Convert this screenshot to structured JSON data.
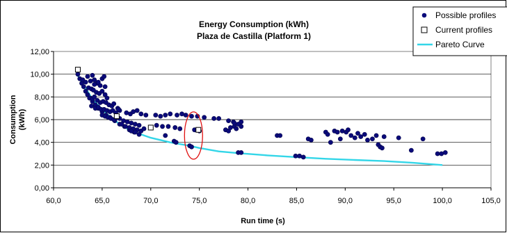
{
  "chart_data": {
    "type": "scatter",
    "title": "Energy Consumption (kWh)",
    "subtitle": "Plaza de Castilla (Platform 1)",
    "xlabel": "Run time (s)",
    "ylabel": "Consumption (kWh)",
    "xlim": [
      60,
      105
    ],
    "ylim": [
      0,
      12
    ],
    "x_ticks": [
      "60,0",
      "65,0",
      "70,0",
      "75,0",
      "80,0",
      "85,0",
      "90,0",
      "95,0",
      "100,0",
      "105,0"
    ],
    "y_ticks": [
      "0,00",
      "2,00",
      "4,00",
      "6,00",
      "8,00",
      "10,00",
      "12,00"
    ],
    "grid": "horizontal",
    "legend_position": "top-right",
    "colors": {
      "possible": "#0a0a7a",
      "current": "#000000",
      "pareto": "#33d6e8",
      "highlight": "#e01010"
    },
    "series": [
      {
        "name": "Possible profiles",
        "marker": "filled-circle",
        "points": [
          [
            62.5,
            10.0
          ],
          [
            62.7,
            9.6
          ],
          [
            62.9,
            9.2
          ],
          [
            63.1,
            8.9
          ],
          [
            63.3,
            8.5
          ],
          [
            63.5,
            8.2
          ],
          [
            63.8,
            7.9
          ],
          [
            64.0,
            7.6
          ],
          [
            64.3,
            7.3
          ],
          [
            64.6,
            7.0
          ],
          [
            65.0,
            6.7
          ],
          [
            65.4,
            6.4
          ],
          [
            65.8,
            6.2
          ],
          [
            66.3,
            5.9
          ],
          [
            66.8,
            5.6
          ],
          [
            67.3,
            5.4
          ],
          [
            67.8,
            5.1
          ],
          [
            68.3,
            4.9
          ],
          [
            68.8,
            4.7
          ],
          [
            63.0,
            9.5
          ],
          [
            63.3,
            9.3
          ],
          [
            63.5,
            9.8
          ],
          [
            63.8,
            9.4
          ],
          [
            64.0,
            9.9
          ],
          [
            64.2,
            9.5
          ],
          [
            64.5,
            9.2
          ],
          [
            64.8,
            9.0
          ],
          [
            65.0,
            9.6
          ],
          [
            65.2,
            9.8
          ],
          [
            63.6,
            8.8
          ],
          [
            63.9,
            8.7
          ],
          [
            64.1,
            8.6
          ],
          [
            64.4,
            8.4
          ],
          [
            64.7,
            8.3
          ],
          [
            65.0,
            8.5
          ],
          [
            65.3,
            8.2
          ],
          [
            63.7,
            7.9
          ],
          [
            64.0,
            7.8
          ],
          [
            64.2,
            8.0
          ],
          [
            64.5,
            7.7
          ],
          [
            64.8,
            7.5
          ],
          [
            65.1,
            7.6
          ],
          [
            65.4,
            7.5
          ],
          [
            65.7,
            7.3
          ],
          [
            66.0,
            7.2
          ],
          [
            66.2,
            7.4
          ],
          [
            63.9,
            7.2
          ],
          [
            64.3,
            7.0
          ],
          [
            64.6,
            7.1
          ],
          [
            64.9,
            6.9
          ],
          [
            65.2,
            6.9
          ],
          [
            65.5,
            6.8
          ],
          [
            65.8,
            6.7
          ],
          [
            66.1,
            6.8
          ],
          [
            66.4,
            6.6
          ],
          [
            66.6,
            7.0
          ],
          [
            66.8,
            6.8
          ],
          [
            65.0,
            6.4
          ],
          [
            65.3,
            6.3
          ],
          [
            65.6,
            6.2
          ],
          [
            65.9,
            6.1
          ],
          [
            66.2,
            6.0
          ],
          [
            66.5,
            6.2
          ],
          [
            66.8,
            6.1
          ],
          [
            67.2,
            5.9
          ],
          [
            67.6,
            5.8
          ],
          [
            68.0,
            5.7
          ],
          [
            68.4,
            5.6
          ],
          [
            68.8,
            5.5
          ],
          [
            67.0,
            5.6
          ],
          [
            67.4,
            5.4
          ],
          [
            67.8,
            5.3
          ],
          [
            68.2,
            5.2
          ],
          [
            68.6,
            5.1
          ],
          [
            69.0,
            5.0
          ],
          [
            69.3,
            5.2
          ],
          [
            68.0,
            5.0
          ],
          [
            68.4,
            4.9
          ],
          [
            64.2,
            9.1
          ],
          [
            64.6,
            9.3
          ],
          [
            65.3,
            8.9
          ],
          [
            65.5,
            7.9
          ],
          [
            66.7,
            6.9
          ],
          [
            67.5,
            6.6
          ],
          [
            67.9,
            6.5
          ],
          [
            68.2,
            6.7
          ],
          [
            68.6,
            6.8
          ],
          [
            69.0,
            6.5
          ],
          [
            69.5,
            6.4
          ],
          [
            70.5,
            6.4
          ],
          [
            71.0,
            6.3
          ],
          [
            71.5,
            6.4
          ],
          [
            72.0,
            6.5
          ],
          [
            72.7,
            6.4
          ],
          [
            73.2,
            6.5
          ],
          [
            73.6,
            6.4
          ],
          [
            74.2,
            6.3
          ],
          [
            74.8,
            6.3
          ],
          [
            75.5,
            6.2
          ],
          [
            76.5,
            6.1
          ],
          [
            77.0,
            6.1
          ],
          [
            78.0,
            5.9
          ],
          [
            78.5,
            5.8
          ],
          [
            79.3,
            5.8
          ],
          [
            70.6,
            5.5
          ],
          [
            71.2,
            5.4
          ],
          [
            71.8,
            5.4
          ],
          [
            72.5,
            5.3
          ],
          [
            73.0,
            5.2
          ],
          [
            71.5,
            4.6
          ],
          [
            72.4,
            4.1
          ],
          [
            72.6,
            4.0
          ],
          [
            74.0,
            3.7
          ],
          [
            74.2,
            3.6
          ],
          [
            74.5,
            5.1
          ],
          [
            75.0,
            5.0
          ],
          [
            77.7,
            5.1
          ],
          [
            78.0,
            5.0
          ],
          [
            78.2,
            5.3
          ],
          [
            78.6,
            5.4
          ],
          [
            78.8,
            5.2
          ],
          [
            79.3,
            5.4
          ],
          [
            79.0,
            5.6
          ],
          [
            78.6,
            5.7
          ],
          [
            79.0,
            3.1
          ],
          [
            79.3,
            3.1
          ],
          [
            83.0,
            4.6
          ],
          [
            83.3,
            4.6
          ],
          [
            84.9,
            2.8
          ],
          [
            85.3,
            2.8
          ],
          [
            85.7,
            2.7
          ],
          [
            86.2,
            4.3
          ],
          [
            86.5,
            4.2
          ],
          [
            88.0,
            4.9
          ],
          [
            88.2,
            4.7
          ],
          [
            88.5,
            4.0
          ],
          [
            88.9,
            5.0
          ],
          [
            89.2,
            4.9
          ],
          [
            89.5,
            4.3
          ],
          [
            89.7,
            5.0
          ],
          [
            90.1,
            4.9
          ],
          [
            90.3,
            5.1
          ],
          [
            90.6,
            4.6
          ],
          [
            91.0,
            4.4
          ],
          [
            91.3,
            4.8
          ],
          [
            91.6,
            4.5
          ],
          [
            92.0,
            4.7
          ],
          [
            92.3,
            4.2
          ],
          [
            92.8,
            4.3
          ],
          [
            93.2,
            4.6
          ],
          [
            93.4,
            3.8
          ],
          [
            93.6,
            3.6
          ],
          [
            93.8,
            3.5
          ],
          [
            94.0,
            4.5
          ],
          [
            95.5,
            4.4
          ],
          [
            96.8,
            3.3
          ],
          [
            98.0,
            4.3
          ],
          [
            99.5,
            3.0
          ],
          [
            99.9,
            3.0
          ],
          [
            100.3,
            3.1
          ]
        ]
      },
      {
        "name": "Current profiles",
        "marker": "open-square",
        "points": [
          [
            62.5,
            10.4
          ],
          [
            66.5,
            6.3
          ],
          [
            70.0,
            5.3
          ],
          [
            74.9,
            5.1
          ]
        ]
      },
      {
        "name": "Pareto Curve",
        "marker": "line",
        "points": [
          [
            62.5,
            9.9
          ],
          [
            63.0,
            9.1
          ],
          [
            63.5,
            8.5
          ],
          [
            64.0,
            7.8
          ],
          [
            65.0,
            6.9
          ],
          [
            66.0,
            6.1
          ],
          [
            67.0,
            5.5
          ],
          [
            68.0,
            5.0
          ],
          [
            69.0,
            4.7
          ],
          [
            70.0,
            4.4
          ],
          [
            72.0,
            4.0
          ],
          [
            74.0,
            3.7
          ],
          [
            75.0,
            3.5
          ],
          [
            77.0,
            3.2
          ],
          [
            79.0,
            3.05
          ],
          [
            82.0,
            2.85
          ],
          [
            85.0,
            2.7
          ],
          [
            88.0,
            2.55
          ],
          [
            91.0,
            2.45
          ],
          [
            94.0,
            2.35
          ],
          [
            97.0,
            2.2
          ],
          [
            100.0,
            2.0
          ]
        ]
      }
    ],
    "annotation": {
      "type": "ellipse",
      "center": [
        74.4,
        4.6
      ],
      "color": "red"
    }
  }
}
